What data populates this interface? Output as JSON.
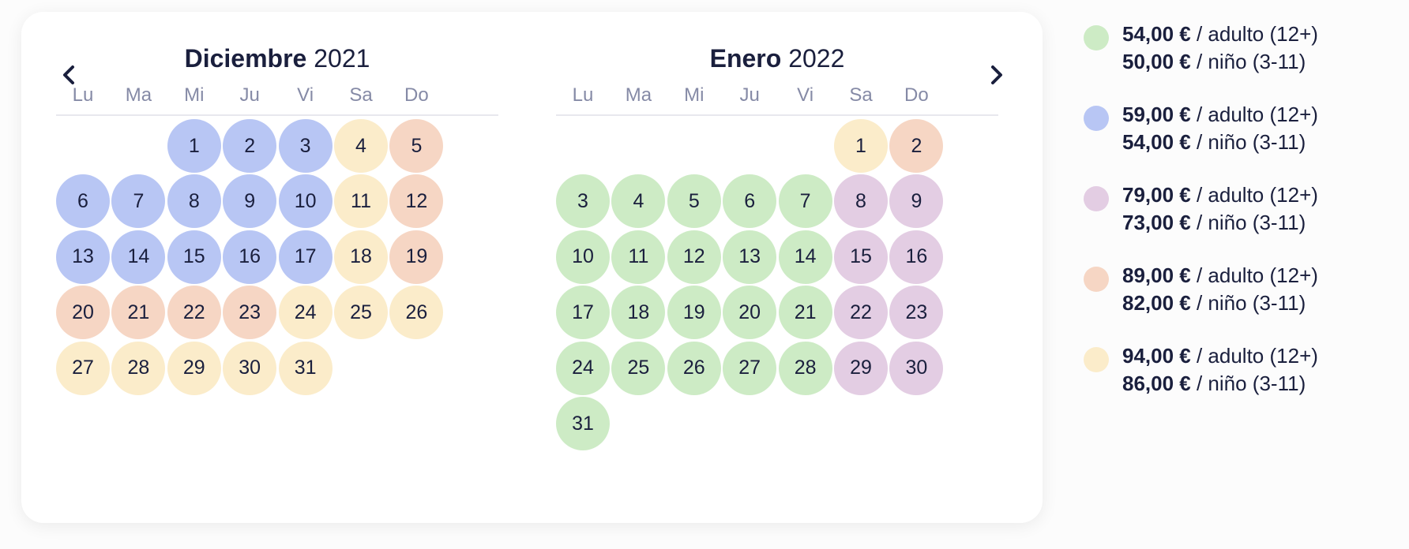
{
  "colors": {
    "green": "#cdebc5",
    "blue": "#b8c6f4",
    "purple": "#e3cde3",
    "orange": "#f6d6c4",
    "yellow": "#fbecca"
  },
  "navigation": {
    "prev_icon": "chevron-left-icon",
    "next_icon": "chevron-right-icon"
  },
  "weekdays": [
    "Lu",
    "Ma",
    "Mi",
    "Ju",
    "Vi",
    "Sa",
    "Do"
  ],
  "months": [
    {
      "name": "Diciembre",
      "year": "2021",
      "start_col": 2,
      "days": [
        {
          "d": "1",
          "c": "blue"
        },
        {
          "d": "2",
          "c": "blue"
        },
        {
          "d": "3",
          "c": "blue"
        },
        {
          "d": "4",
          "c": "yellow"
        },
        {
          "d": "5",
          "c": "orange"
        },
        {
          "d": "6",
          "c": "blue"
        },
        {
          "d": "7",
          "c": "blue"
        },
        {
          "d": "8",
          "c": "blue"
        },
        {
          "d": "9",
          "c": "blue"
        },
        {
          "d": "10",
          "c": "blue"
        },
        {
          "d": "11",
          "c": "yellow"
        },
        {
          "d": "12",
          "c": "orange"
        },
        {
          "d": "13",
          "c": "blue"
        },
        {
          "d": "14",
          "c": "blue"
        },
        {
          "d": "15",
          "c": "blue"
        },
        {
          "d": "16",
          "c": "blue"
        },
        {
          "d": "17",
          "c": "blue"
        },
        {
          "d": "18",
          "c": "yellow"
        },
        {
          "d": "19",
          "c": "orange"
        },
        {
          "d": "20",
          "c": "orange"
        },
        {
          "d": "21",
          "c": "orange"
        },
        {
          "d": "22",
          "c": "orange"
        },
        {
          "d": "23",
          "c": "orange"
        },
        {
          "d": "24",
          "c": "yellow"
        },
        {
          "d": "25",
          "c": "yellow"
        },
        {
          "d": "26",
          "c": "yellow"
        },
        {
          "d": "27",
          "c": "yellow"
        },
        {
          "d": "28",
          "c": "yellow"
        },
        {
          "d": "29",
          "c": "yellow"
        },
        {
          "d": "30",
          "c": "yellow"
        },
        {
          "d": "31",
          "c": "yellow"
        }
      ]
    },
    {
      "name": "Enero",
      "year": "2022",
      "start_col": 5,
      "days": [
        {
          "d": "1",
          "c": "yellow"
        },
        {
          "d": "2",
          "c": "orange"
        },
        {
          "d": "3",
          "c": "green"
        },
        {
          "d": "4",
          "c": "green"
        },
        {
          "d": "5",
          "c": "green"
        },
        {
          "d": "6",
          "c": "green"
        },
        {
          "d": "7",
          "c": "green"
        },
        {
          "d": "8",
          "c": "purple"
        },
        {
          "d": "9",
          "c": "purple"
        },
        {
          "d": "10",
          "c": "green"
        },
        {
          "d": "11",
          "c": "green"
        },
        {
          "d": "12",
          "c": "green"
        },
        {
          "d": "13",
          "c": "green"
        },
        {
          "d": "14",
          "c": "green"
        },
        {
          "d": "15",
          "c": "purple"
        },
        {
          "d": "16",
          "c": "purple"
        },
        {
          "d": "17",
          "c": "green"
        },
        {
          "d": "18",
          "c": "green"
        },
        {
          "d": "19",
          "c": "green"
        },
        {
          "d": "20",
          "c": "green"
        },
        {
          "d": "21",
          "c": "green"
        },
        {
          "d": "22",
          "c": "purple"
        },
        {
          "d": "23",
          "c": "purple"
        },
        {
          "d": "24",
          "c": "green"
        },
        {
          "d": "25",
          "c": "green"
        },
        {
          "d": "26",
          "c": "green"
        },
        {
          "d": "27",
          "c": "green"
        },
        {
          "d": "28",
          "c": "green"
        },
        {
          "d": "29",
          "c": "purple"
        },
        {
          "d": "30",
          "c": "purple"
        },
        {
          "d": "31",
          "c": "green"
        }
      ]
    }
  ],
  "legend": [
    {
      "color": "green",
      "adult_price": "54,00 €",
      "adult_text": " / adulto (12+)",
      "child_price": "50,00 €",
      "child_text": " / niño (3-11)"
    },
    {
      "color": "blue",
      "adult_price": "59,00 €",
      "adult_text": " / adulto (12+)",
      "child_price": "54,00 €",
      "child_text": " / niño (3-11)"
    },
    {
      "color": "purple",
      "adult_price": "79,00 €",
      "adult_text": " / adulto (12+)",
      "child_price": "73,00 €",
      "child_text": " / niño (3-11)"
    },
    {
      "color": "orange",
      "adult_price": "89,00 €",
      "adult_text": " / adulto (12+)",
      "child_price": "82,00 €",
      "child_text": " / niño (3-11)"
    },
    {
      "color": "yellow",
      "adult_price": "94,00 €",
      "adult_text": " / adulto (12+)",
      "child_price": "86,00 €",
      "child_text": " / niño (3-11)"
    }
  ]
}
